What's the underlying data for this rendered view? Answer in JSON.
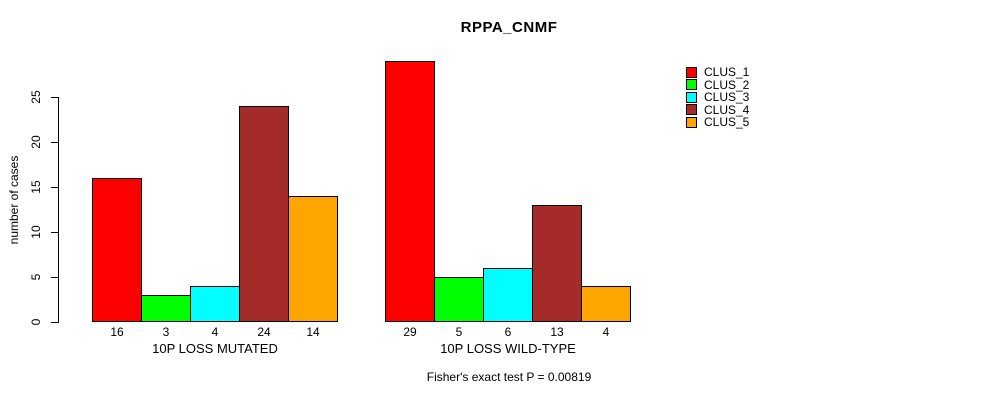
{
  "chart_data": {
    "type": "bar",
    "title": "RPPA_CNMF",
    "ylabel": "number of cases",
    "xlabel": "",
    "ylim": [
      0,
      25
    ],
    "yticks": [
      0,
      5,
      10,
      15,
      20,
      25
    ],
    "grid": false,
    "legend_position": "right-of-plot",
    "background_color": "#FFFFFF",
    "axis_color": "#000000",
    "text_color": "#000000",
    "categories": [
      "10P LOSS MUTATED",
      "10P LOSS WILD-TYPE"
    ],
    "series": [
      {
        "name": "CLUS_1",
        "color": "#FF0000",
        "values": [
          16,
          29
        ]
      },
      {
        "name": "CLUS_2",
        "color": "#00FF00",
        "values": [
          3,
          5
        ]
      },
      {
        "name": "CLUS_3",
        "color": "#00FFFF",
        "values": [
          4,
          6
        ]
      },
      {
        "name": "CLUS_4",
        "color": "#A52A2A",
        "values": [
          24,
          13
        ]
      },
      {
        "name": "CLUS_5",
        "color": "#FFA500",
        "values": [
          14,
          4
        ]
      }
    ],
    "bar_value_labels": [
      [
        "16",
        "3",
        "4",
        "24",
        "14"
      ],
      [
        "29",
        "5",
        "6",
        "13",
        "4"
      ]
    ],
    "annotation": "Fisher's exact test P = 0.00819"
  }
}
